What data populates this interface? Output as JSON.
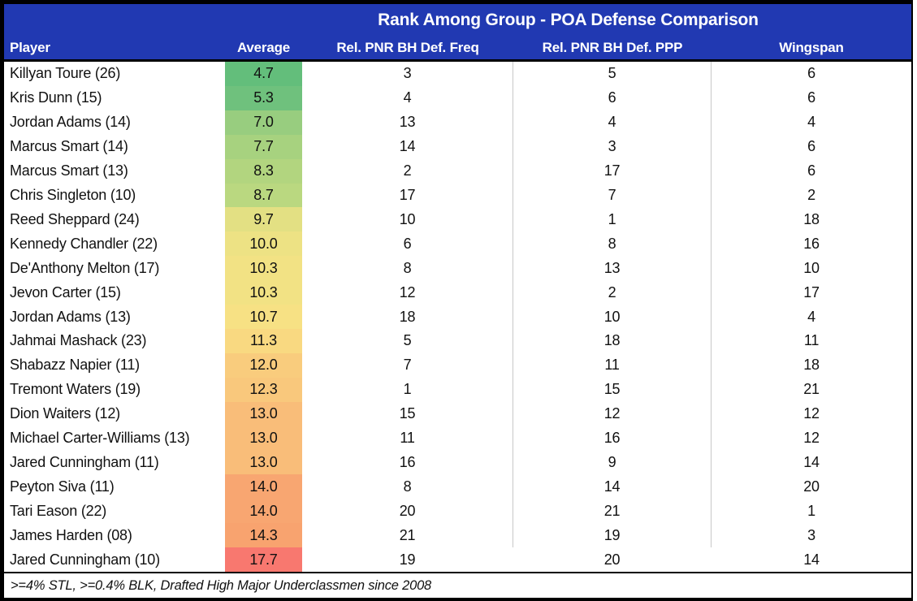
{
  "colors": {
    "header_bg": "#2139B2",
    "header_text": "#FFFFFF",
    "border": "#000000",
    "column_separator": "#C8C8C8",
    "scale_green": "#63BE7B",
    "scale_yellow": "#FFEB84",
    "scale_red": "#F8696B"
  },
  "chart_data": {
    "type": "table",
    "title": "Rank Among Group - POA Defense Comparison",
    "columns": [
      "Player",
      "Average",
      "Rel. PNR BH Def. Freq",
      "Rel. PNR BH Def. PPP",
      "Wingspan"
    ],
    "footnote": ">=4% STL, >=0.4% BLK, Drafted High Major Underclassmen since 2008",
    "color_scale_note": "Average column shaded green (low) to red (high)",
    "rows": [
      {
        "player": "Killyan Toure (26)",
        "average": "4.7",
        "freq": "3",
        "ppp": "5",
        "wingspan": "6",
        "avg_color": "#63BE7B"
      },
      {
        "player": "Kris Dunn (15)",
        "average": "5.3",
        "freq": "4",
        "ppp": "6",
        "wingspan": "6",
        "avg_color": "#6FC17D"
      },
      {
        "player": "Jordan Adams (14)",
        "average": "7.0",
        "freq": "13",
        "ppp": "4",
        "wingspan": "4",
        "avg_color": "#98CD7F"
      },
      {
        "player": "Marcus Smart (14)",
        "average": "7.7",
        "freq": "14",
        "ppp": "3",
        "wingspan": "6",
        "avg_color": "#A7D27F"
      },
      {
        "player": "Marcus Smart (13)",
        "average": "8.3",
        "freq": "2",
        "ppp": "17",
        "wingspan": "6",
        "avg_color": "#B2D57F"
      },
      {
        "player": "Chris Singleton (10)",
        "average": "8.7",
        "freq": "17",
        "ppp": "7",
        "wingspan": "2",
        "avg_color": "#BAD880"
      },
      {
        "player": "Reed Sheppard (24)",
        "average": "9.7",
        "freq": "10",
        "ppp": "1",
        "wingspan": "18",
        "avg_color": "#E3E083"
      },
      {
        "player": "Kennedy Chandler (22)",
        "average": "10.0",
        "freq": "6",
        "ppp": "8",
        "wingspan": "16",
        "avg_color": "#EDE284"
      },
      {
        "player": "De'Anthony Melton (17)",
        "average": "10.3",
        "freq": "8",
        "ppp": "13",
        "wingspan": "10",
        "avg_color": "#F2E284"
      },
      {
        "player": "Jevon Carter (15)",
        "average": "10.3",
        "freq": "12",
        "ppp": "2",
        "wingspan": "17",
        "avg_color": "#F2E284"
      },
      {
        "player": "Jordan Adams (13)",
        "average": "10.7",
        "freq": "18",
        "ppp": "10",
        "wingspan": "4",
        "avg_color": "#F7E184"
      },
      {
        "player": "Jahmai Mashack (23)",
        "average": "11.3",
        "freq": "5",
        "ppp": "18",
        "wingspan": "11",
        "avg_color": "#F9D981"
      },
      {
        "player": "Shabazz Napier (11)",
        "average": "12.0",
        "freq": "7",
        "ppp": "11",
        "wingspan": "18",
        "avg_color": "#F9CC7D"
      },
      {
        "player": "Tremont Waters (19)",
        "average": "12.3",
        "freq": "1",
        "ppp": "15",
        "wingspan": "21",
        "avg_color": "#F9C87C"
      },
      {
        "player": "Dion Waiters (12)",
        "average": "13.0",
        "freq": "15",
        "ppp": "12",
        "wingspan": "12",
        "avg_color": "#F9BD79"
      },
      {
        "player": "Michael Carter-Williams (13)",
        "average": "13.0",
        "freq": "11",
        "ppp": "16",
        "wingspan": "12",
        "avg_color": "#F9BD79"
      },
      {
        "player": "Jared Cunningham (11)",
        "average": "13.0",
        "freq": "16",
        "ppp": "9",
        "wingspan": "14",
        "avg_color": "#F9BD79"
      },
      {
        "player": "Peyton Siva (11)",
        "average": "14.0",
        "freq": "8",
        "ppp": "14",
        "wingspan": "20",
        "avg_color": "#F8A671"
      },
      {
        "player": "Tari Eason (22)",
        "average": "14.0",
        "freq": "20",
        "ppp": "21",
        "wingspan": "1",
        "avg_color": "#F8A671"
      },
      {
        "player": "James Harden (08)",
        "average": "14.3",
        "freq": "21",
        "ppp": "19",
        "wingspan": "3",
        "avg_color": "#F8A36F"
      },
      {
        "player": "Jared Cunningham (10)",
        "average": "17.7",
        "freq": "19",
        "ppp": "20",
        "wingspan": "14",
        "avg_color": "#F8786F"
      }
    ]
  }
}
